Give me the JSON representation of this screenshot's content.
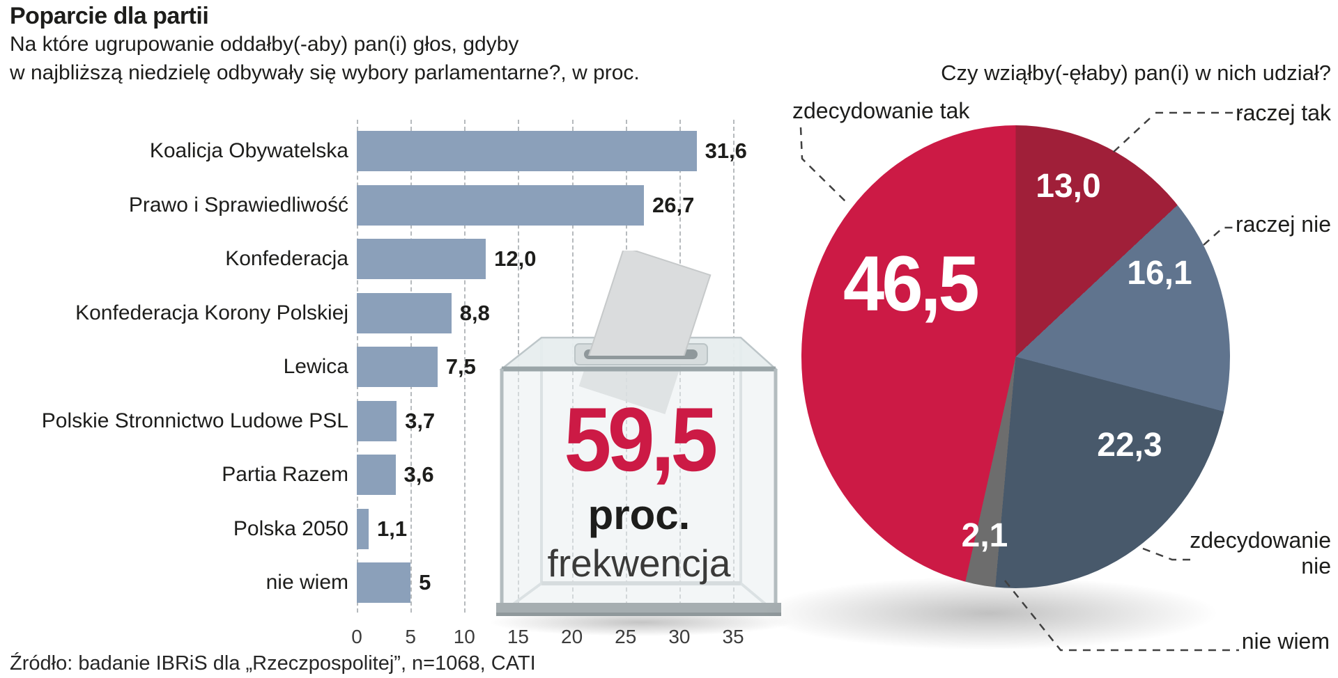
{
  "header": {
    "title": "Poparcie dla partii",
    "subtitle_line1": "Na które ugrupowanie oddałby(-aby) pan(i) głos, gdyby",
    "subtitle_line2": "w najbliższą niedzielę odbywały się wybory parlamentarne?, w proc."
  },
  "source": "Źródło: badanie IBRiS dla „Rzeczpospolitej”, n=1068, CATI",
  "turnout": {
    "value_label": "59,5",
    "unit": "proc.",
    "caption": "frekwencja",
    "color": "#cc1a45"
  },
  "icons": {
    "ballot_box": "ballot-box-with-inserted-ballot"
  },
  "colors": {
    "bar": "#8ba0ba",
    "grid": "#b6babd",
    "leader_lines": "#404040"
  },
  "chart_data": [
    {
      "type": "bar",
      "title": "Poparcie dla partii",
      "question": "Na które ugrupowanie oddałby(-aby) pan(i) głos, gdyby w najbliższą niedzielę odbywały się wybory parlamentarne?, w proc.",
      "categories": [
        "Koalicja Obywatelska",
        "Prawo i Sprawiedliwość",
        "Konfederacja",
        "Konfederacja Korony Polskiej",
        "Lewica",
        "Polskie Stronnictwo Ludowe PSL",
        "Partia Razem",
        "Polska 2050",
        "nie wiem"
      ],
      "values": [
        31.6,
        26.7,
        12.0,
        8.8,
        7.5,
        3.7,
        3.6,
        1.1,
        5
      ],
      "value_labels": [
        "31,6",
        "26,7",
        "12,0",
        "8,8",
        "7,5",
        "3,7",
        "3,6",
        "1,1",
        "5"
      ],
      "xlabel": "",
      "ylabel": "",
      "xlim": [
        0,
        35
      ],
      "x_ticks": [
        0,
        5,
        10,
        15,
        20,
        25,
        30,
        35
      ],
      "grid": "vertical-dashed",
      "bar_color": "#8ba0ba",
      "orientation": "horizontal"
    },
    {
      "type": "pie",
      "title": "Czy wziąłby(-ęłaby) pan(i) w nich udział?",
      "start_angle": "12-oclock",
      "direction": "clockwise",
      "slices": [
        {
          "label": "raczej tak",
          "value": 13.0,
          "value_label": "13,0",
          "color": "#a01f39"
        },
        {
          "label": "raczej nie",
          "value": 16.1,
          "value_label": "16,1",
          "color": "#60748e"
        },
        {
          "label": "zdecydowanie nie",
          "value": 22.3,
          "value_label": "22,3",
          "color": "#48596b"
        },
        {
          "label": "nie wiem",
          "value": 2.1,
          "value_label": "2,1",
          "color": "#6d6d6d"
        },
        {
          "label": "zdecydowanie tak",
          "value": 46.5,
          "value_label": "46,5",
          "color": "#cc1a45"
        }
      ]
    }
  ]
}
